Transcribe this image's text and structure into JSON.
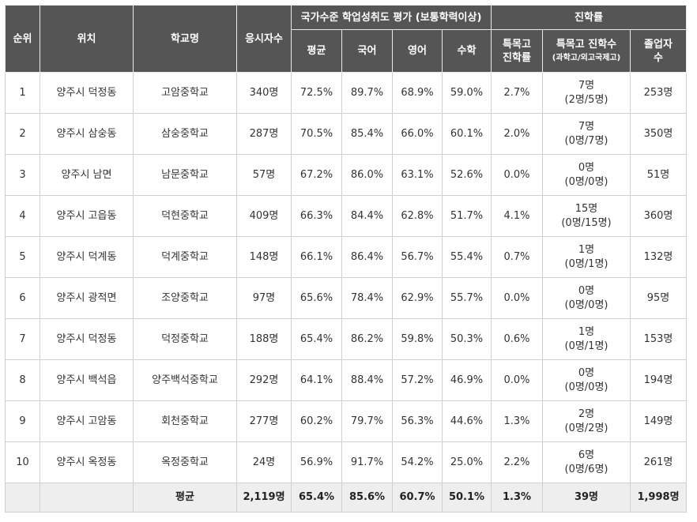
{
  "header": {
    "rank": "순위",
    "location": "위치",
    "school": "학교명",
    "examinees": "응시자수",
    "assessment_group": "국가수준 학업성취도 평가 (보통학력이상)",
    "avg": "평균",
    "korean": "국어",
    "english": "영어",
    "math": "수학",
    "advancement_group": "진학률",
    "special_rate_1": "특목고",
    "special_rate_2": "진학률",
    "special_count_1": "특목고 진학수",
    "special_count_2": "(과학고/외고국제고)",
    "graduates_1": "졸업자",
    "graduates_2": "수"
  },
  "rows": [
    {
      "rank": "1",
      "location": "양주시 덕정동",
      "school": "고암중학교",
      "examinees": "340명",
      "avg": "72.5%",
      "korean": "89.7%",
      "english": "68.9%",
      "math": "59.0%",
      "special_rate": "2.7%",
      "special_count": "7명",
      "special_detail": "(2명/5명)",
      "graduates": "253명"
    },
    {
      "rank": "2",
      "location": "양주시 삼숭동",
      "school": "삼숭중학교",
      "examinees": "287명",
      "avg": "70.5%",
      "korean": "85.4%",
      "english": "66.0%",
      "math": "60.1%",
      "special_rate": "2.0%",
      "special_count": "7명",
      "special_detail": "(0명/7명)",
      "graduates": "350명"
    },
    {
      "rank": "3",
      "location": "양주시 남면",
      "school": "남문중학교",
      "examinees": "57명",
      "avg": "67.2%",
      "korean": "86.0%",
      "english": "63.1%",
      "math": "52.6%",
      "special_rate": "0.0%",
      "special_count": "0명",
      "special_detail": "(0명/0명)",
      "graduates": "51명"
    },
    {
      "rank": "4",
      "location": "양주시 고읍동",
      "school": "덕현중학교",
      "examinees": "409명",
      "avg": "66.3%",
      "korean": "84.4%",
      "english": "62.8%",
      "math": "51.7%",
      "special_rate": "4.1%",
      "special_count": "15명",
      "special_detail": "(0명/15명)",
      "graduates": "360명"
    },
    {
      "rank": "5",
      "location": "양주시 덕계동",
      "school": "덕계중학교",
      "examinees": "148명",
      "avg": "66.1%",
      "korean": "86.4%",
      "english": "56.7%",
      "math": "55.4%",
      "special_rate": "0.7%",
      "special_count": "1명",
      "special_detail": "(0명/1명)",
      "graduates": "132명"
    },
    {
      "rank": "6",
      "location": "양주시 광적면",
      "school": "조양중학교",
      "examinees": "97명",
      "avg": "65.6%",
      "korean": "78.4%",
      "english": "62.9%",
      "math": "55.7%",
      "special_rate": "0.0%",
      "special_count": "0명",
      "special_detail": "(0명/0명)",
      "graduates": "95명"
    },
    {
      "rank": "7",
      "location": "양주시 덕정동",
      "school": "덕정중학교",
      "examinees": "188명",
      "avg": "65.4%",
      "korean": "86.2%",
      "english": "59.8%",
      "math": "50.3%",
      "special_rate": "0.6%",
      "special_count": "1명",
      "special_detail": "(0명/1명)",
      "graduates": "153명"
    },
    {
      "rank": "8",
      "location": "양주시 백석읍",
      "school": "양주백석중학교",
      "examinees": "292명",
      "avg": "64.1%",
      "korean": "88.4%",
      "english": "57.2%",
      "math": "46.9%",
      "special_rate": "0.0%",
      "special_count": "0명",
      "special_detail": "(0명/0명)",
      "graduates": "194명"
    },
    {
      "rank": "9",
      "location": "양주시 고암동",
      "school": "회천중학교",
      "examinees": "277명",
      "avg": "60.2%",
      "korean": "79.7%",
      "english": "56.3%",
      "math": "44.6%",
      "special_rate": "1.3%",
      "special_count": "2명",
      "special_detail": "(0명/2명)",
      "graduates": "149명"
    },
    {
      "rank": "10",
      "location": "양주시 옥정동",
      "school": "옥정중학교",
      "examinees": "24명",
      "avg": "56.9%",
      "korean": "91.7%",
      "english": "54.2%",
      "math": "25.0%",
      "special_rate": "2.2%",
      "special_count": "6명",
      "special_detail": "(0명/6명)",
      "graduates": "261명"
    }
  ],
  "average_row": {
    "label": "평균",
    "examinees": "2,119명",
    "avg": "65.4%",
    "korean": "85.6%",
    "english": "60.7%",
    "math": "50.1%",
    "special_rate": "1.3%",
    "special_count": "39명",
    "graduates": "1,998명"
  }
}
